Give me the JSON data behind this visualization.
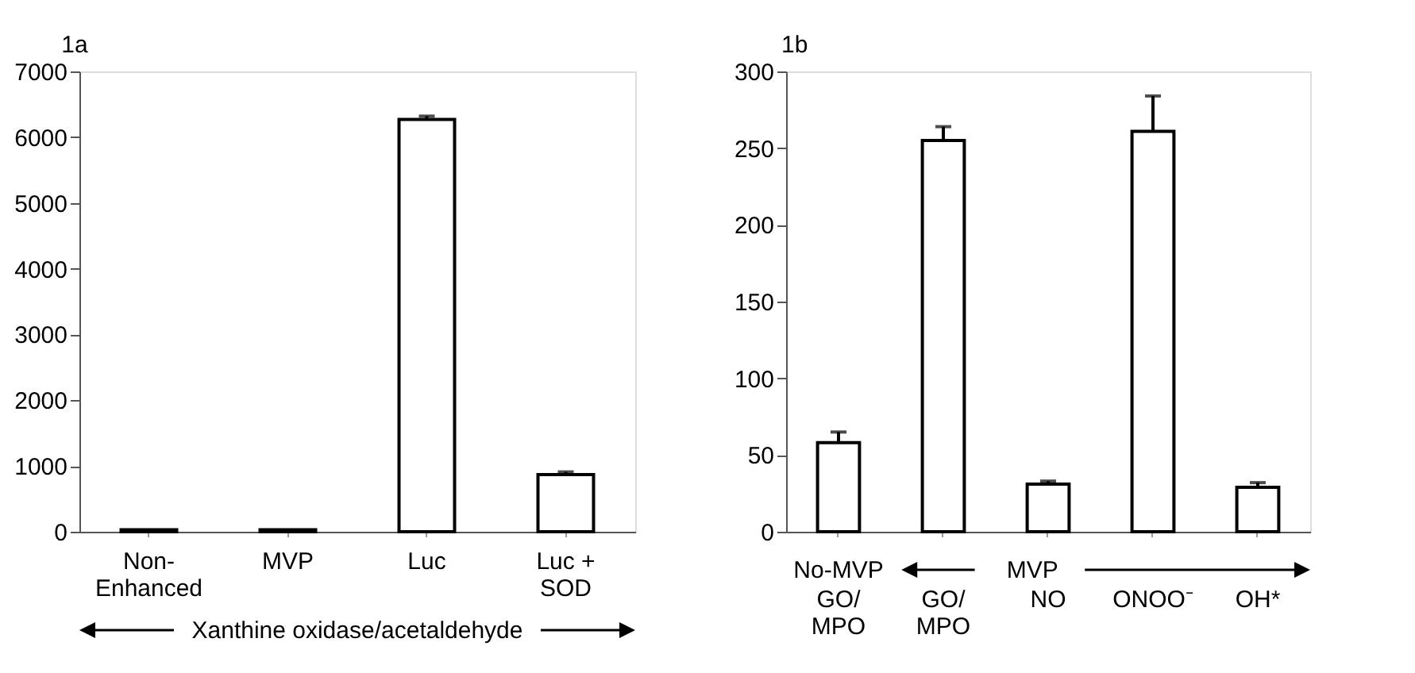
{
  "chart_data": [
    {
      "type": "bar",
      "title": "1a",
      "categories": [
        "Non-\nEnhanced",
        "MVP",
        "Luc",
        "Luc +\nSOD"
      ],
      "values": [
        30,
        30,
        6270,
        870
      ],
      "errors": [
        null,
        null,
        50,
        40
      ],
      "color": "#ffffff",
      "ylim": [
        0,
        7000
      ],
      "yticks": [
        0,
        1000,
        2000,
        3000,
        4000,
        5000,
        6000,
        7000
      ],
      "xlabel": "Xanthine oxidase/acetaldehyde",
      "grid": false
    },
    {
      "type": "bar",
      "title": "1b",
      "categories": [
        "GO/\nMPO",
        "GO/\nMPO",
        "NO",
        "ONOO⁻",
        "OH*"
      ],
      "values": [
        58,
        255,
        31,
        261,
        29
      ],
      "errors": [
        7,
        9,
        2,
        23,
        3
      ],
      "color": "#ffffff",
      "ylim": [
        0,
        300
      ],
      "yticks": [
        0,
        50,
        100,
        150,
        200,
        250,
        300
      ],
      "annotations": [
        "No-MVP",
        "MVP"
      ],
      "grid": false
    }
  ]
}
